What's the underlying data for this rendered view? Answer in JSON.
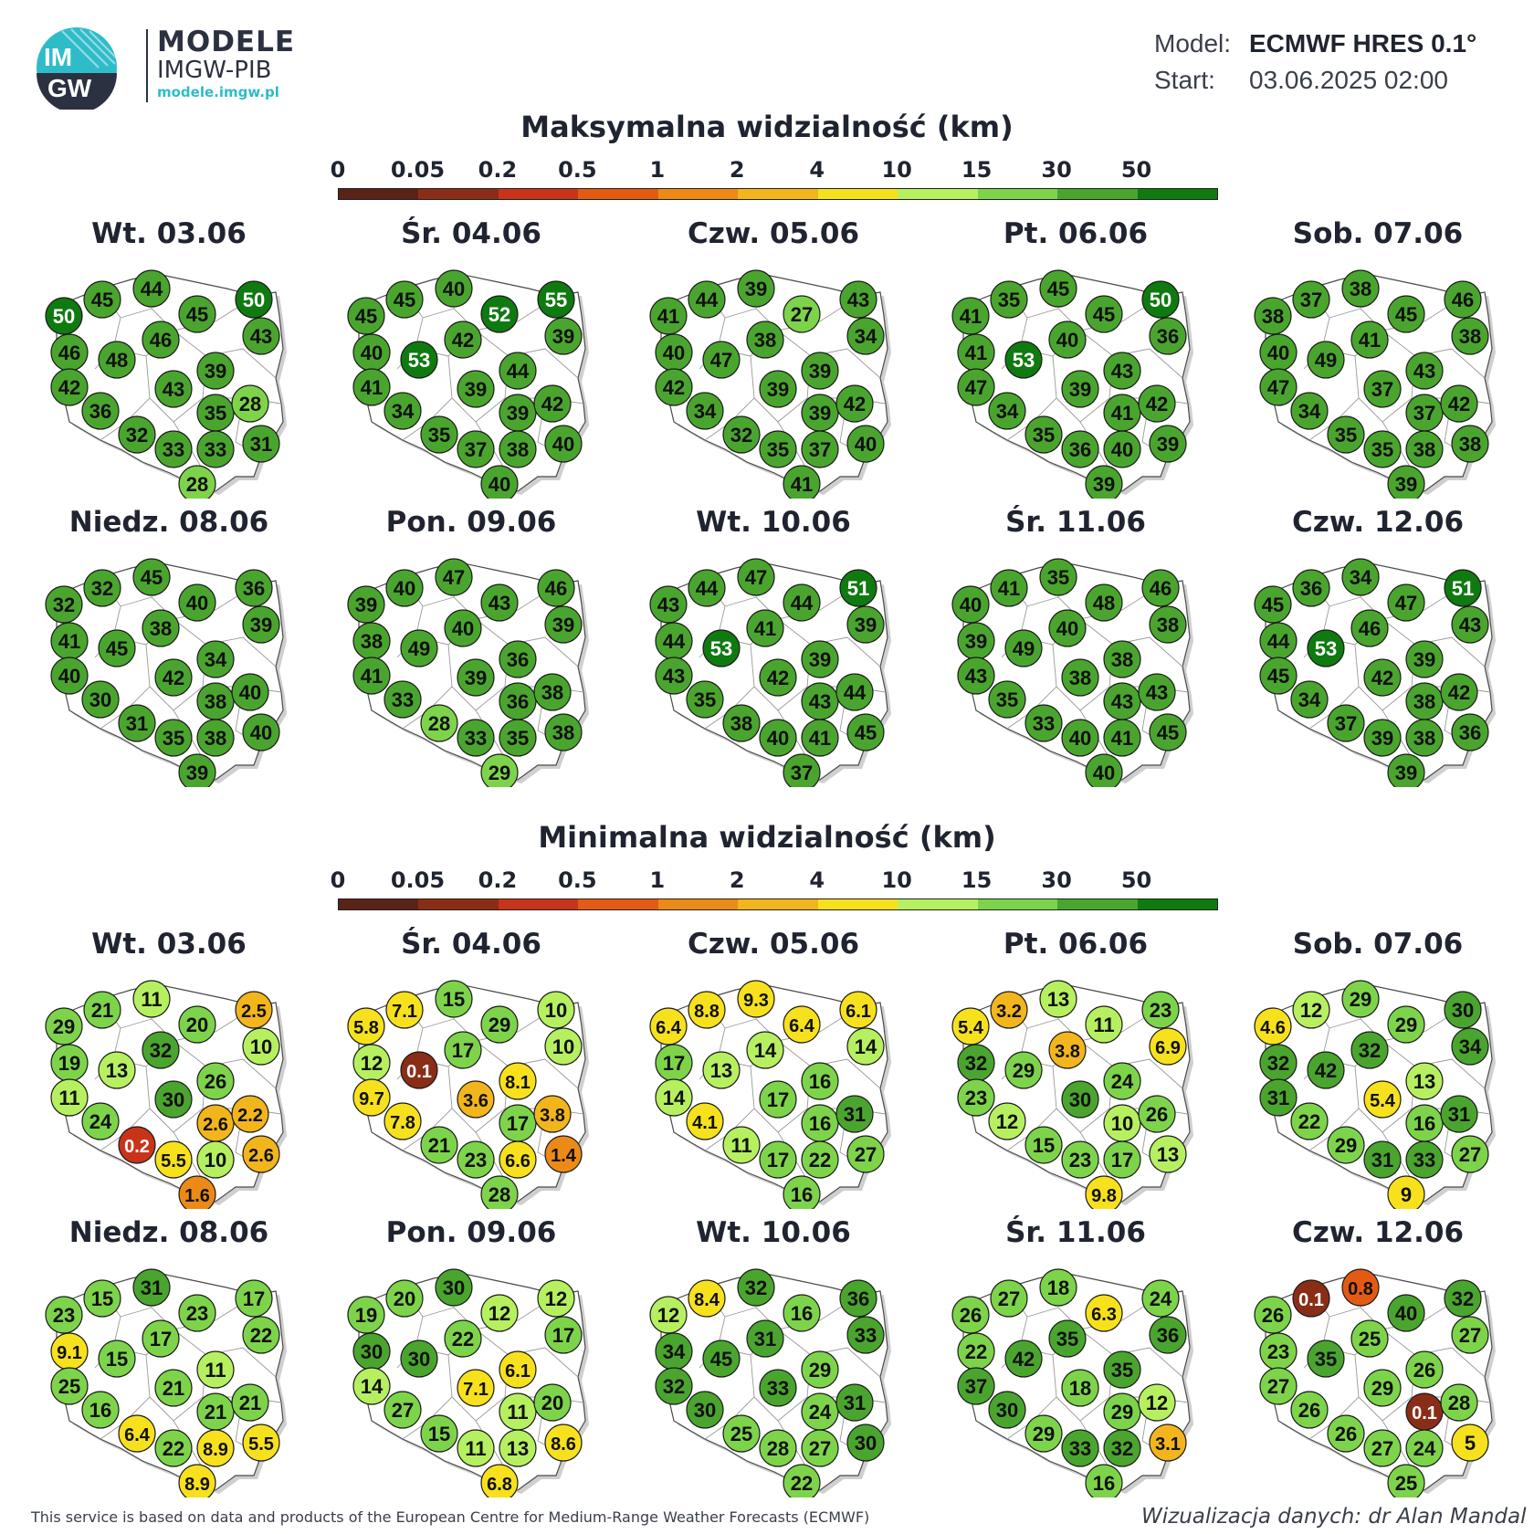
{
  "header": {
    "logo_text_1": "IM",
    "logo_text_2": "GW",
    "brand_title": "MODELE",
    "brand_subtitle": "IMGW-PIB",
    "brand_url": "modele.imgw.pl",
    "model_label": "Model:",
    "model_value": "ECMWF HRES 0.1°",
    "start_label": "Start:",
    "start_value": "03.06.2025 02:00"
  },
  "legend": {
    "ticks": [
      "0",
      "0.05",
      "0.2",
      "0.5",
      "1",
      "2",
      "4",
      "10",
      "15",
      "30",
      "50"
    ],
    "colors": [
      "#5a2318",
      "#8a2d17",
      "#c8341a",
      "#e35a14",
      "#ec8a17",
      "#f2b51c",
      "#f7e11d",
      "#b6f060",
      "#7dd44a",
      "#4aa52e",
      "#0f7a10"
    ]
  },
  "sections": [
    {
      "title": "Maksymalna widzialność (km)",
      "days": [
        {
          "label": "Wt. 03.06",
          "values": [
            "50",
            "45",
            "44",
            "45",
            "50",
            "46",
            "48",
            "46",
            "43",
            "42",
            "43",
            "39",
            "36",
            "35",
            "28",
            "32",
            "33",
            "33",
            "31",
            "28"
          ]
        },
        {
          "label": "Śr. 04.06",
          "values": [
            "45",
            "45",
            "40",
            "52",
            "55",
            "40",
            "53",
            "42",
            "39",
            "41",
            "39",
            "44",
            "34",
            "39",
            "42",
            "35",
            "37",
            "38",
            "40",
            "40"
          ]
        },
        {
          "label": "Czw. 05.06",
          "values": [
            "41",
            "44",
            "39",
            "27",
            "43",
            "40",
            "47",
            "38",
            "34",
            "42",
            "39",
            "39",
            "34",
            "39",
            "42",
            "32",
            "35",
            "37",
            "40",
            "41"
          ]
        },
        {
          "label": "Pt. 06.06",
          "values": [
            "41",
            "35",
            "45",
            "45",
            "50",
            "41",
            "53",
            "40",
            "36",
            "47",
            "39",
            "43",
            "34",
            "41",
            "42",
            "35",
            "36",
            "40",
            "39",
            "39"
          ]
        },
        {
          "label": "Sob. 07.06",
          "values": [
            "38",
            "37",
            "38",
            "45",
            "46",
            "40",
            "49",
            "41",
            "38",
            "47",
            "37",
            "43",
            "34",
            "37",
            "42",
            "35",
            "35",
            "38",
            "38",
            "39"
          ]
        },
        {
          "label": "Niedz. 08.06",
          "values": [
            "32",
            "32",
            "45",
            "40",
            "36",
            "41",
            "45",
            "38",
            "39",
            "40",
            "42",
            "34",
            "30",
            "38",
            "40",
            "31",
            "35",
            "38",
            "40",
            "39"
          ]
        },
        {
          "label": "Pon. 09.06",
          "values": [
            "39",
            "40",
            "47",
            "43",
            "46",
            "38",
            "49",
            "40",
            "39",
            "41",
            "39",
            "36",
            "33",
            "36",
            "38",
            "28",
            "33",
            "35",
            "38",
            "29"
          ]
        },
        {
          "label": "Wt. 10.06",
          "values": [
            "43",
            "44",
            "47",
            "44",
            "51",
            "44",
            "53",
            "41",
            "39",
            "43",
            "42",
            "39",
            "35",
            "43",
            "44",
            "38",
            "40",
            "41",
            "45",
            "37"
          ]
        },
        {
          "label": "Śr. 11.06",
          "values": [
            "40",
            "41",
            "35",
            "48",
            "46",
            "39",
            "49",
            "40",
            "38",
            "43",
            "38",
            "38",
            "35",
            "43",
            "43",
            "33",
            "40",
            "41",
            "45",
            "40"
          ]
        },
        {
          "label": "Czw. 12.06",
          "values": [
            "45",
            "36",
            "34",
            "47",
            "51",
            "44",
            "53",
            "46",
            "43",
            "45",
            "42",
            "39",
            "34",
            "38",
            "42",
            "37",
            "39",
            "38",
            "36",
            "39"
          ]
        }
      ]
    },
    {
      "title": "Minimalna widzialność (km)",
      "days": [
        {
          "label": "Wt. 03.06",
          "values": [
            "29",
            "21",
            "11",
            "20",
            "2.5",
            "19",
            "13",
            "32",
            "10",
            "11",
            "30",
            "26",
            "24",
            "2.6",
            "2.2",
            "0.2",
            "5.5",
            "10",
            "2.6",
            "1.6"
          ]
        },
        {
          "label": "Śr. 04.06",
          "values": [
            "5.8",
            "7.1",
            "15",
            "29",
            "10",
            "12",
            "0.1",
            "17",
            "10",
            "9.7",
            "3.6",
            "8.1",
            "7.8",
            "17",
            "3.8",
            "21",
            "23",
            "6.6",
            "1.4",
            "28"
          ]
        },
        {
          "label": "Czw. 05.06",
          "values": [
            "6.4",
            "8.8",
            "9.3",
            "6.4",
            "6.1",
            "17",
            "13",
            "14",
            "14",
            "14",
            "17",
            "16",
            "4.1",
            "16",
            "31",
            "11",
            "17",
            "22",
            "27",
            "16"
          ]
        },
        {
          "label": "Pt. 06.06",
          "values": [
            "5.4",
            "3.2",
            "13",
            "11",
            "23",
            "32",
            "29",
            "3.8",
            "6.9",
            "23",
            "30",
            "24",
            "12",
            "10",
            "26",
            "15",
            "23",
            "17",
            "13",
            "9.8"
          ]
        },
        {
          "label": "Sob. 07.06",
          "values": [
            "4.6",
            "12",
            "29",
            "29",
            "30",
            "32",
            "42",
            "32",
            "34",
            "31",
            "5.4",
            "13",
            "22",
            "16",
            "31",
            "29",
            "31",
            "33",
            "27",
            "9"
          ]
        },
        {
          "label": "Niedz. 08.06",
          "values": [
            "23",
            "15",
            "31",
            "23",
            "17",
            "9.1",
            "15",
            "17",
            "22",
            "25",
            "21",
            "11",
            "16",
            "21",
            "21",
            "6.4",
            "22",
            "8.9",
            "5.5",
            "8.9"
          ]
        },
        {
          "label": "Pon. 09.06",
          "values": [
            "19",
            "20",
            "30",
            "12",
            "12",
            "30",
            "30",
            "22",
            "17",
            "14",
            "7.1",
            "6.1",
            "27",
            "11",
            "20",
            "15",
            "11",
            "13",
            "8.6",
            "6.8"
          ]
        },
        {
          "label": "Wt. 10.06",
          "values": [
            "12",
            "8.4",
            "32",
            "16",
            "36",
            "34",
            "45",
            "31",
            "33",
            "32",
            "33",
            "29",
            "30",
            "24",
            "31",
            "25",
            "28",
            "27",
            "30",
            "22"
          ]
        },
        {
          "label": "Śr. 11.06",
          "values": [
            "26",
            "27",
            "18",
            "6.3",
            "24",
            "22",
            "42",
            "35",
            "36",
            "37",
            "18",
            "35",
            "30",
            "29",
            "12",
            "29",
            "33",
            "32",
            "3.1",
            "16"
          ]
        },
        {
          "label": "Czw. 12.06",
          "values": [
            "26",
            "0.1",
            "0.8",
            "40",
            "32",
            "23",
            "35",
            "25",
            "27",
            "27",
            "29",
            "26",
            "26",
            "0.1",
            "28",
            "26",
            "27",
            "24",
            "5",
            "25"
          ]
        }
      ]
    }
  ],
  "footer": {
    "left": "This service is based on data and products of the European Centre for Medium-Range Weather Forecasts (ECMWF)",
    "right": "Wizualizacja danych: dr Alan Mandal"
  }
}
